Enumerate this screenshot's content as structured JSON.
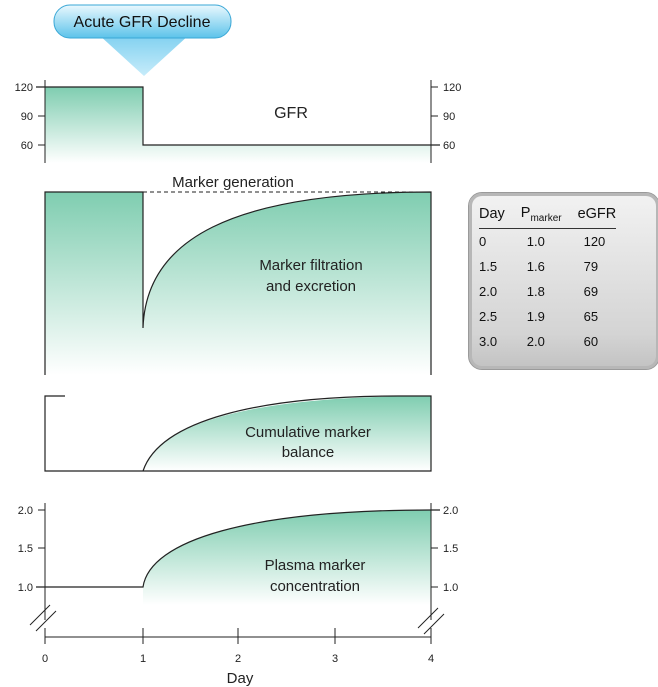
{
  "banner": {
    "label": "Acute GFR Decline"
  },
  "panels": {
    "gfr": {
      "label": "GFR",
      "y_ticks": [
        "120",
        "90",
        "60"
      ],
      "values": {
        "before": 120,
        "after": 60
      }
    },
    "marker_generation": {
      "label": "Marker generation"
    },
    "filtration": {
      "label_line1": "Marker filtration",
      "label_line2": "and excretion"
    },
    "balance": {
      "label_line1": "Cumulative marker",
      "label_line2": "balance"
    },
    "plasma": {
      "label_line1": "Plasma marker",
      "label_line2": "concentration",
      "y_ticks": [
        "2.0",
        "1.5",
        "1.0"
      ],
      "values": {
        "baseline": 1.0,
        "plateau": 2.0
      }
    }
  },
  "x_axis": {
    "label": "Day",
    "ticks": [
      "0",
      "1",
      "2",
      "3",
      "4"
    ]
  },
  "table": {
    "headers": {
      "day": "Day",
      "p_main": "P",
      "p_sub": "marker",
      "egfr": "eGFR"
    },
    "rows": [
      {
        "day": "0",
        "p": "1.0",
        "egfr": "120"
      },
      {
        "day": "1.5",
        "p": "1.6",
        "egfr": "79"
      },
      {
        "day": "2.0",
        "p": "1.8",
        "egfr": "69"
      },
      {
        "day": "2.5",
        "p": "1.9",
        "egfr": "65"
      },
      {
        "day": "3.0",
        "p": "2.0",
        "egfr": "60"
      }
    ]
  },
  "colors": {
    "fill_top": "#7fcdb0",
    "fill_bottom": "#ffffff",
    "banner_top": "#d8f1fc",
    "banner_bottom": "#5cc3ea",
    "line": "#222222"
  }
}
